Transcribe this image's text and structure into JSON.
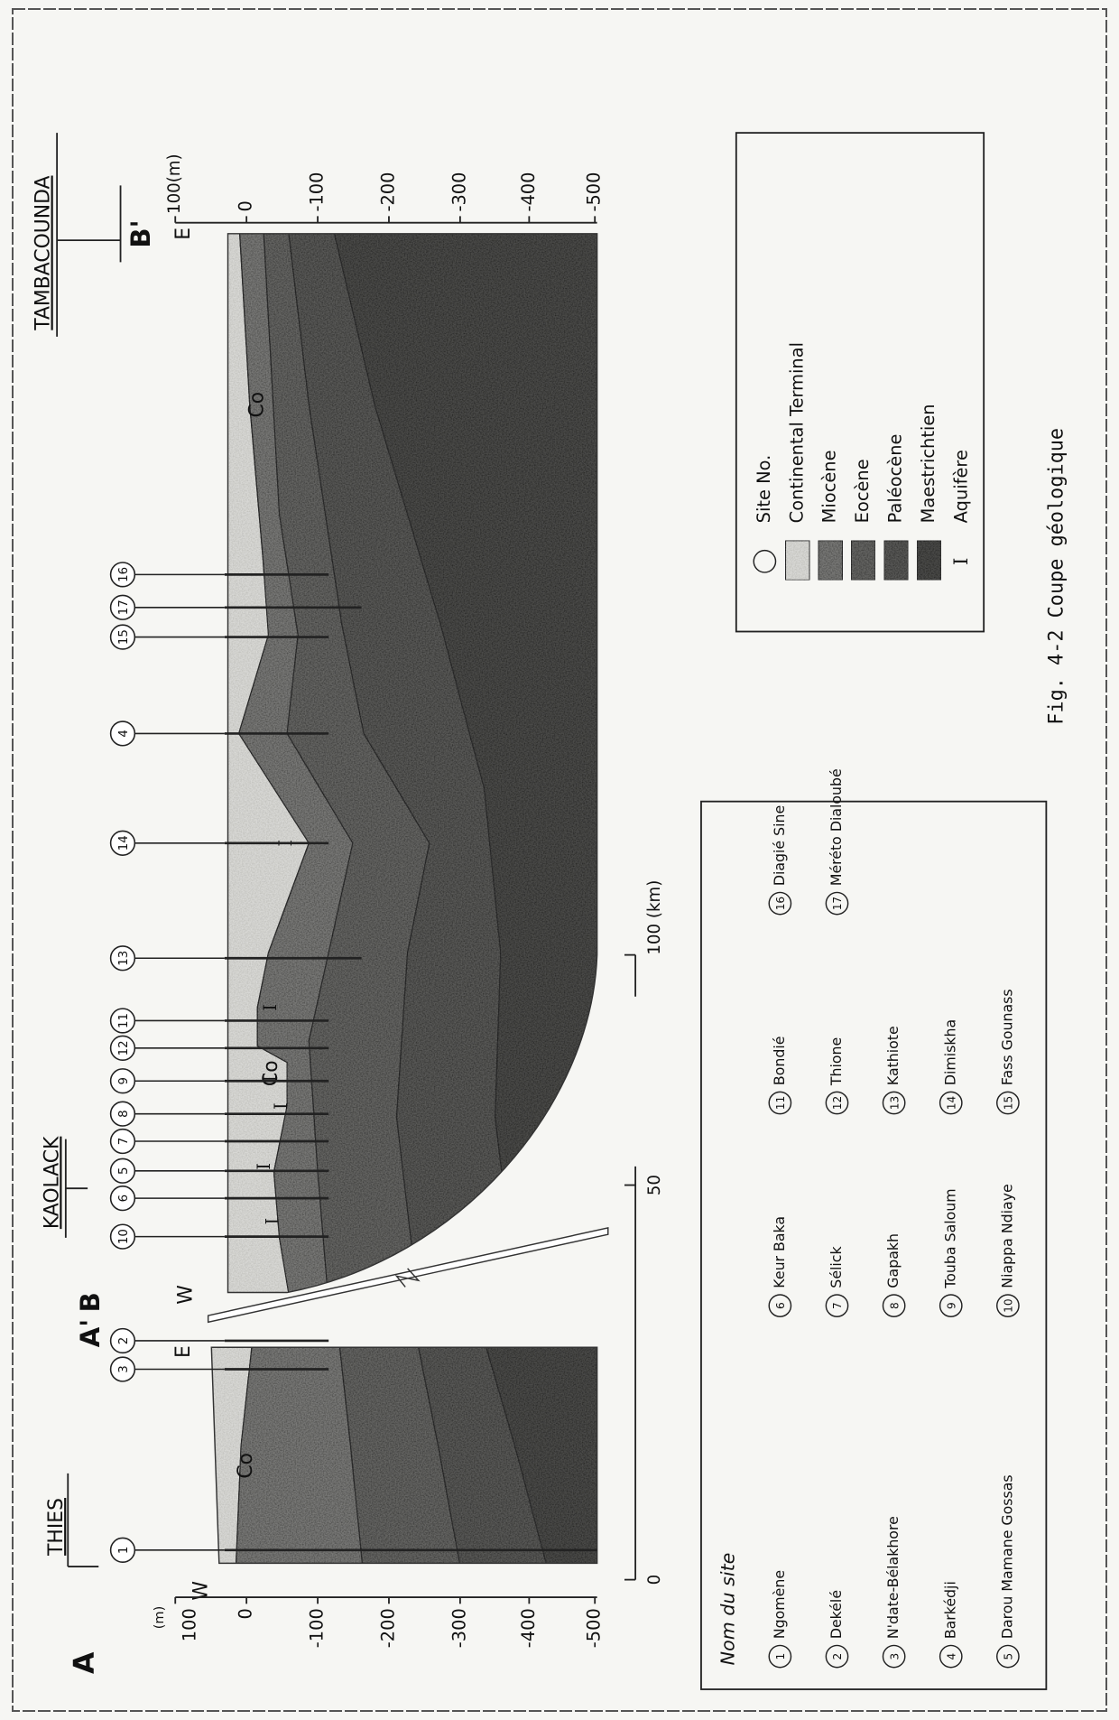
{
  "header": {
    "left_place": "THIES",
    "middle_place": "KAOLACK",
    "right_place": "TAMBACOUNDA"
  },
  "section": {
    "end_labels": [
      "A",
      "A'",
      "B",
      "B'"
    ],
    "directions": [
      "W",
      "E",
      "W",
      "E"
    ],
    "formation_labels": [
      "Co",
      "Co",
      "Co"
    ],
    "aquifer_marks": [
      "I",
      "I",
      "I",
      "I",
      "I",
      "I"
    ]
  },
  "depth_axis": {
    "left_unit": "(m)",
    "right_unit": "100(m)",
    "ticks": [
      "100",
      "0",
      "-100",
      "-200",
      "-300",
      "-400",
      "-500"
    ]
  },
  "distance_axis": {
    "ticks": [
      "0",
      "50",
      "100 (km)"
    ]
  },
  "site_markers": [
    "1",
    "3",
    "2",
    "10",
    "6",
    "5",
    "7",
    "8",
    "9",
    "12",
    "11",
    "13",
    "14",
    "4",
    "15",
    "17",
    "16"
  ],
  "site_legend": {
    "title": "Nom du site",
    "entries": [
      {
        "number": "1",
        "name": "Ngomène"
      },
      {
        "number": "2",
        "name": "Dekélé"
      },
      {
        "number": "3",
        "name": "N'date-Bélakhore"
      },
      {
        "number": "4",
        "name": "Barkédji"
      },
      {
        "number": "5",
        "name": "Darou Mamane Gossas"
      },
      {
        "number": "6",
        "name": "Keur Baka"
      },
      {
        "number": "7",
        "name": "Sélick"
      },
      {
        "number": "8",
        "name": "Gapakh"
      },
      {
        "number": "9",
        "name": "Touba Saloum"
      },
      {
        "number": "10",
        "name": "Niappa Ndiaye"
      },
      {
        "number": "11",
        "name": "Bondié"
      },
      {
        "number": "12",
        "name": "Thione"
      },
      {
        "number": "13",
        "name": "Kathiote"
      },
      {
        "number": "14",
        "name": "Dimiskha"
      },
      {
        "number": "15",
        "name": "Fass Gounass"
      },
      {
        "number": "16",
        "name": "Diagié Sine"
      },
      {
        "number": "17",
        "name": "Méréto Dialoubé"
      }
    ]
  },
  "key": {
    "entries": [
      "Site No.",
      "Continental Terminal",
      "Miocène",
      "Eocène",
      "Paléocène",
      "Maestrichtien",
      "Aquifère"
    ],
    "aquifer_symbol": "I"
  },
  "caption": "Fig. 4-2  Coupe géologique"
}
